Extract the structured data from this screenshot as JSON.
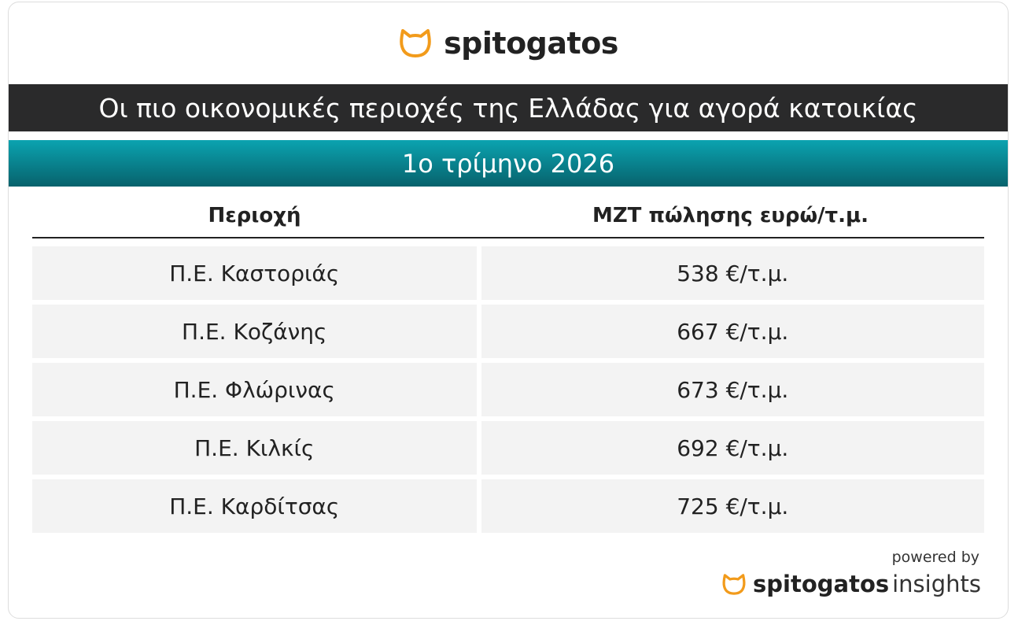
{
  "header": {
    "brand": "spitogatos",
    "title": "Οι πιο οικονομικές περιοχές της Ελλάδας για αγορά κατοικίας",
    "subtitle": "1ο τρίμηνο 2026"
  },
  "table": {
    "columns": [
      "Περιοχή",
      "ΜΖΤ πώλησης ευρώ/τ.μ."
    ],
    "rows": [
      [
        "Π.Ε. Καστοριάς",
        "538 €/τ.μ."
      ],
      [
        "Π.Ε. Κοζάνης",
        "667 €/τ.μ."
      ],
      [
        "Π.Ε. Φλώρινας",
        "673 €/τ.μ."
      ],
      [
        "Π.Ε. Κιλκίς",
        "692 €/τ.μ."
      ],
      [
        "Π.Ε. Καρδίτσας",
        "725 €/τ.μ."
      ]
    ]
  },
  "footer": {
    "powered": "powered by",
    "brand": "spitogatos",
    "product": "insights"
  }
}
